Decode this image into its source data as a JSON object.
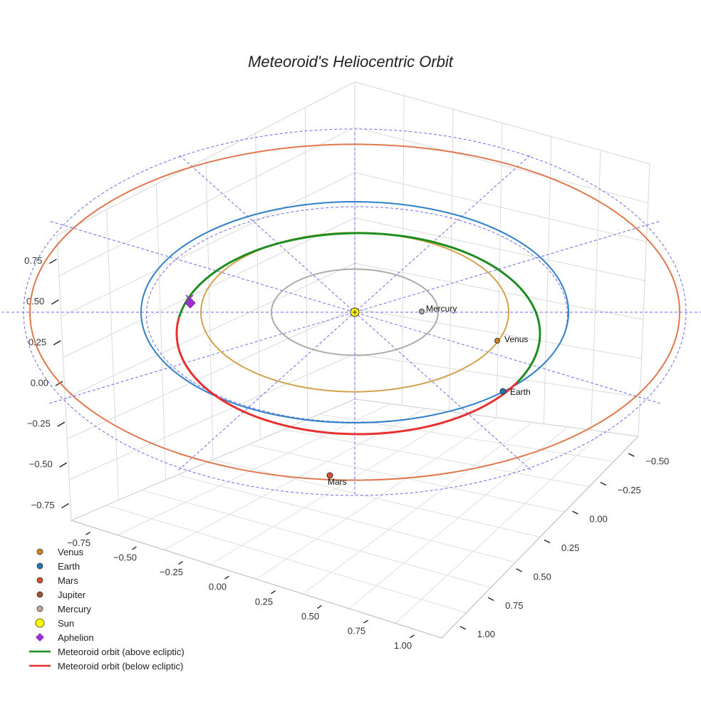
{
  "chart_data": {
    "type": "scatter",
    "title": "Meteoroid's Heliocentric Orbit",
    "projection": "3d",
    "axes": {
      "x": {
        "ticks": [
          "−0.75",
          "−0.50",
          "−0.25",
          "0.00",
          "0.25",
          "0.50",
          "0.75",
          "1.00"
        ]
      },
      "y": {
        "ticks": [
          "−0.50",
          "−0.25",
          "0.00",
          "0.25",
          "0.50",
          "0.75",
          "1.00"
        ]
      },
      "z": {
        "ticks": [
          "0.75",
          "0.50",
          "0.25",
          "0.00",
          "−0.25",
          "−0.50",
          "−0.75"
        ]
      }
    },
    "orbits": [
      {
        "name": "Mercury",
        "semi_major_au": 0.39,
        "color": "#b0aaa6"
      },
      {
        "name": "Venus",
        "semi_major_au": 0.72,
        "color": "#d4a24e"
      },
      {
        "name": "Earth",
        "semi_major_au": 1.0,
        "color": "#2f80c8"
      },
      {
        "name": "Mars",
        "semi_major_au": 1.52,
        "color": "#e0784e"
      }
    ],
    "points": [
      {
        "name": "Mercury",
        "label": "Mercury",
        "color": "#b0aaa6"
      },
      {
        "name": "Venus",
        "label": "Venus",
        "color": "#d4861c"
      },
      {
        "name": "Earth",
        "label": "Earth",
        "color": "#1f77b4"
      },
      {
        "name": "Mars",
        "label": "Mars",
        "color": "#d9502a"
      },
      {
        "name": "Sun",
        "color": "#ffff00"
      },
      {
        "name": "Aphelion",
        "color": "#9932cc"
      }
    ],
    "meteoroid_orbit": {
      "above_ecliptic_color": "#1e8c1e",
      "below_ecliptic_color": "#e83030"
    },
    "ecliptic_grid_color": "#6a6aee",
    "legend": {
      "position": "bottom-left",
      "items": [
        {
          "label": "Venus",
          "symbol": "circle",
          "color": "#d4861c"
        },
        {
          "label": "Earth",
          "symbol": "circle",
          "color": "#1f77b4"
        },
        {
          "label": "Mars",
          "symbol": "circle",
          "color": "#d9502a"
        },
        {
          "label": "Jupiter",
          "symbol": "circle",
          "color": "#a0522d"
        },
        {
          "label": "Mercury",
          "symbol": "circle",
          "color": "#c0a8a0"
        },
        {
          "label": "Sun",
          "symbol": "big-circle",
          "color": "#ffff00"
        },
        {
          "label": "Aphelion",
          "symbol": "diamond",
          "color": "#9932cc"
        },
        {
          "label": "Meteoroid orbit (above ecliptic)",
          "symbol": "line",
          "color": "#1e8c1e"
        },
        {
          "label": "Meteoroid orbit (below ecliptic)",
          "symbol": "line",
          "color": "#e83030"
        }
      ]
    }
  }
}
